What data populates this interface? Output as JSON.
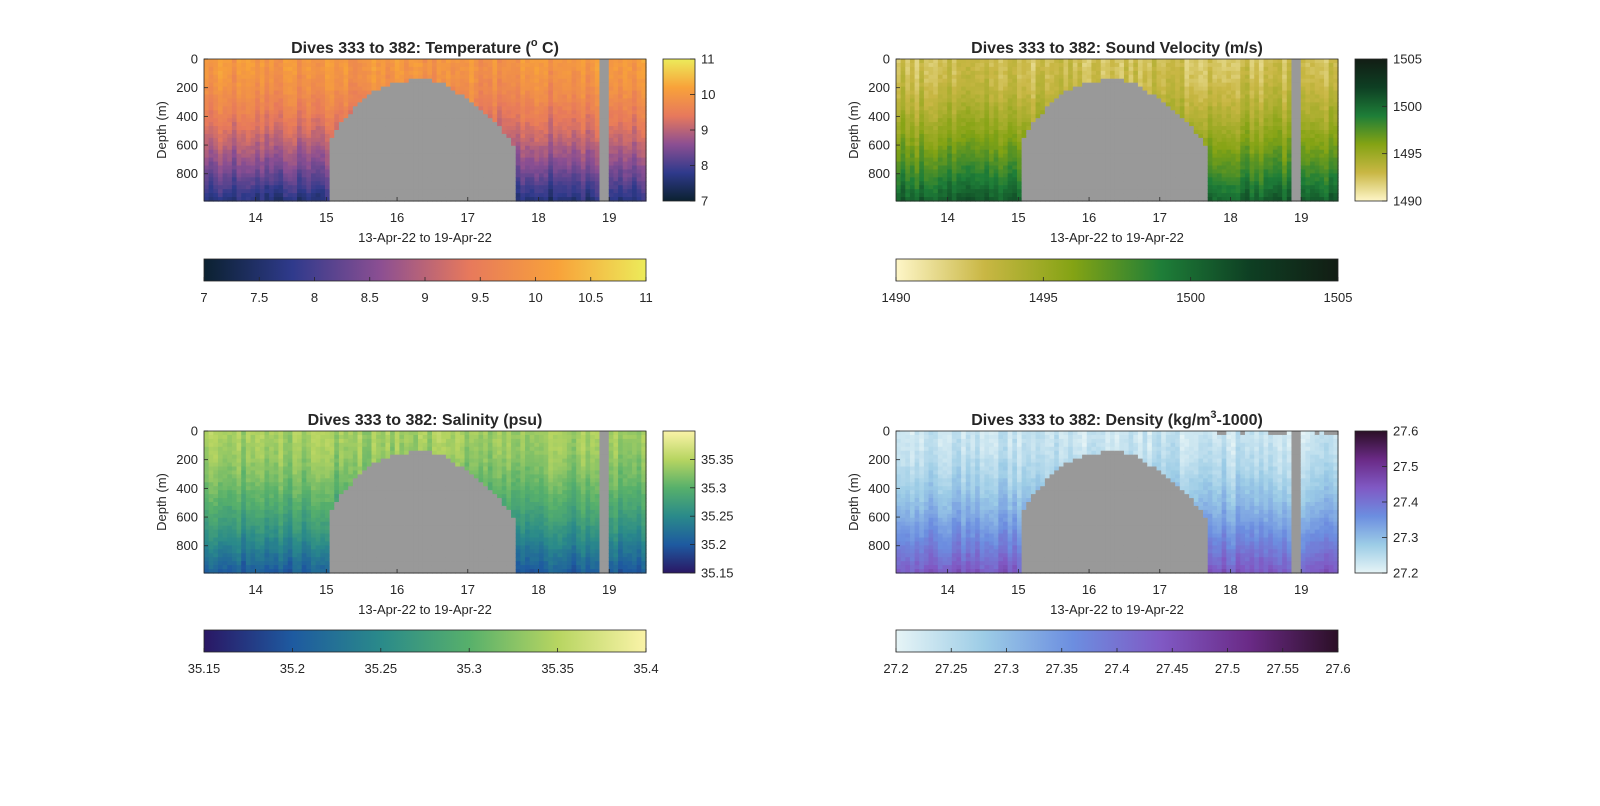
{
  "chart_data": [
    {
      "type": "heatmap",
      "title": "Dives 333 to 382: Temperature (",
      "title_sup": "o",
      "title_suffix": " C)",
      "xlabel": "13-Apr-22 to 19-Apr-22",
      "ylabel": "Depth (m)",
      "xlim": [
        13.27,
        19.52
      ],
      "ylim": [
        0,
        990
      ],
      "xticks": [
        "14",
        "15",
        "16",
        "17",
        "18",
        "19"
      ],
      "yticks": [
        "0",
        "200",
        "400",
        "600",
        "800"
      ],
      "colormap": [
        "#0b2130",
        "#2f3a8c",
        "#8c4f92",
        "#e7795c",
        "#f8a23a",
        "#eceb5a"
      ],
      "clim": [
        7,
        11
      ],
      "colorbar_ticks": [
        "7",
        "8",
        "9",
        "10",
        "11"
      ],
      "h_colorbar_ticks": [
        "7",
        "7.5",
        "8",
        "8.5",
        "9",
        "9.5",
        "10",
        "10.5",
        "11"
      ],
      "surface_value": 10.0,
      "deep_value": 7.6,
      "missing_top_value": false,
      "grid": false
    },
    {
      "type": "heatmap",
      "title": "Dives 333 to 382: Sound Velocity (m/s)",
      "title_sup": "",
      "title_suffix": "",
      "xlabel": "13-Apr-22 to 19-Apr-22",
      "ylabel": "Depth (m)",
      "xlim": [
        13.27,
        19.52
      ],
      "ylim": [
        0,
        990
      ],
      "xticks": [
        "14",
        "15",
        "16",
        "17",
        "18",
        "19"
      ],
      "yticks": [
        "0",
        "200",
        "400",
        "600",
        "800"
      ],
      "colormap": [
        "#fef6c8",
        "#c9b744",
        "#84a314",
        "#1e7e38",
        "#0e3f23",
        "#121d14"
      ],
      "clim": [
        1490,
        1505
      ],
      "colorbar_ticks": [
        "1490",
        "1495",
        "1500",
        "1505"
      ],
      "h_colorbar_ticks": [
        "1490",
        "1495",
        "1500",
        "1505"
      ],
      "surface_value": 1492.5,
      "deep_value": 1500.5,
      "missing_top_value": false,
      "grid": false
    },
    {
      "type": "heatmap",
      "title": "Dives 333 to 382: Salinity (psu)",
      "title_sup": "",
      "title_suffix": "",
      "xlabel": "13-Apr-22 to 19-Apr-22",
      "ylabel": "Depth (m)",
      "xlim": [
        13.27,
        19.52
      ],
      "ylim": [
        0,
        990
      ],
      "xticks": [
        "14",
        "15",
        "16",
        "17",
        "18",
        "19"
      ],
      "yticks": [
        "0",
        "200",
        "400",
        "600",
        "800"
      ],
      "colormap": [
        "#2a1764",
        "#1e5aa0",
        "#2a8a8a",
        "#57b06b",
        "#b7d561",
        "#faf3a8"
      ],
      "clim": [
        35.15,
        35.4
      ],
      "colorbar_ticks": [
        "35.15",
        "35.2",
        "35.25",
        "35.3",
        "35.35"
      ],
      "h_colorbar_ticks": [
        "35.15",
        "35.2",
        "35.25",
        "35.3",
        "35.35",
        "35.4"
      ],
      "surface_value": 35.34,
      "deep_value": 35.2,
      "missing_top_value": false,
      "grid": false
    },
    {
      "type": "heatmap",
      "title": "Dives 333 to 382: Density (kg/m",
      "title_sup": "3",
      "title_suffix": "-1000)",
      "xlabel": "13-Apr-22 to 19-Apr-22",
      "ylabel": "Depth (m)",
      "xlim": [
        13.27,
        19.52
      ],
      "ylim": [
        0,
        990
      ],
      "xticks": [
        "14",
        "15",
        "16",
        "17",
        "18",
        "19"
      ],
      "yticks": [
        "0",
        "200",
        "400",
        "600",
        "800"
      ],
      "colormap": [
        "#e6f4f6",
        "#9ccce6",
        "#6c8ee0",
        "#8059c4",
        "#6a2a86",
        "#2b0f26"
      ],
      "clim": [
        27.2,
        27.6
      ],
      "colorbar_ticks": [
        "27.2",
        "27.3",
        "27.4",
        "27.5",
        "27.6"
      ],
      "h_colorbar_ticks": [
        "27.2",
        "27.25",
        "27.3",
        "27.35",
        "27.4",
        "27.45",
        "27.5",
        "27.55",
        "27.6"
      ],
      "surface_value": 27.23,
      "deep_value": 27.44,
      "missing_top_value": true,
      "grid": false
    }
  ],
  "missing_data_color": "#999999",
  "gap_start_day": 15.03,
  "gap_end_day": 17.65,
  "gap_profile": [
    {
      "x": 15.03,
      "depth": 600
    },
    {
      "x": 15.1,
      "depth": 520
    },
    {
      "x": 15.2,
      "depth": 460
    },
    {
      "x": 15.3,
      "depth": 400
    },
    {
      "x": 15.4,
      "depth": 340
    },
    {
      "x": 15.5,
      "depth": 290
    },
    {
      "x": 15.6,
      "depth": 250
    },
    {
      "x": 15.7,
      "depth": 215
    },
    {
      "x": 15.8,
      "depth": 195
    },
    {
      "x": 15.9,
      "depth": 175
    },
    {
      "x": 16.0,
      "depth": 160
    },
    {
      "x": 16.1,
      "depth": 155
    },
    {
      "x": 16.2,
      "depth": 150
    },
    {
      "x": 16.3,
      "depth": 150
    },
    {
      "x": 16.4,
      "depth": 150
    },
    {
      "x": 16.5,
      "depth": 150
    },
    {
      "x": 16.6,
      "depth": 165
    },
    {
      "x": 16.7,
      "depth": 185
    },
    {
      "x": 16.8,
      "depth": 215
    },
    {
      "x": 16.9,
      "depth": 250
    },
    {
      "x": 17.0,
      "depth": 285
    },
    {
      "x": 17.1,
      "depth": 320
    },
    {
      "x": 17.2,
      "depth": 360
    },
    {
      "x": 17.3,
      "depth": 400
    },
    {
      "x": 17.4,
      "depth": 440
    },
    {
      "x": 17.5,
      "depth": 500
    },
    {
      "x": 17.6,
      "depth": 580
    },
    {
      "x": 17.65,
      "depth": 620
    }
  ],
  "missing_dive_day": [
    18.87,
    19.0
  ]
}
